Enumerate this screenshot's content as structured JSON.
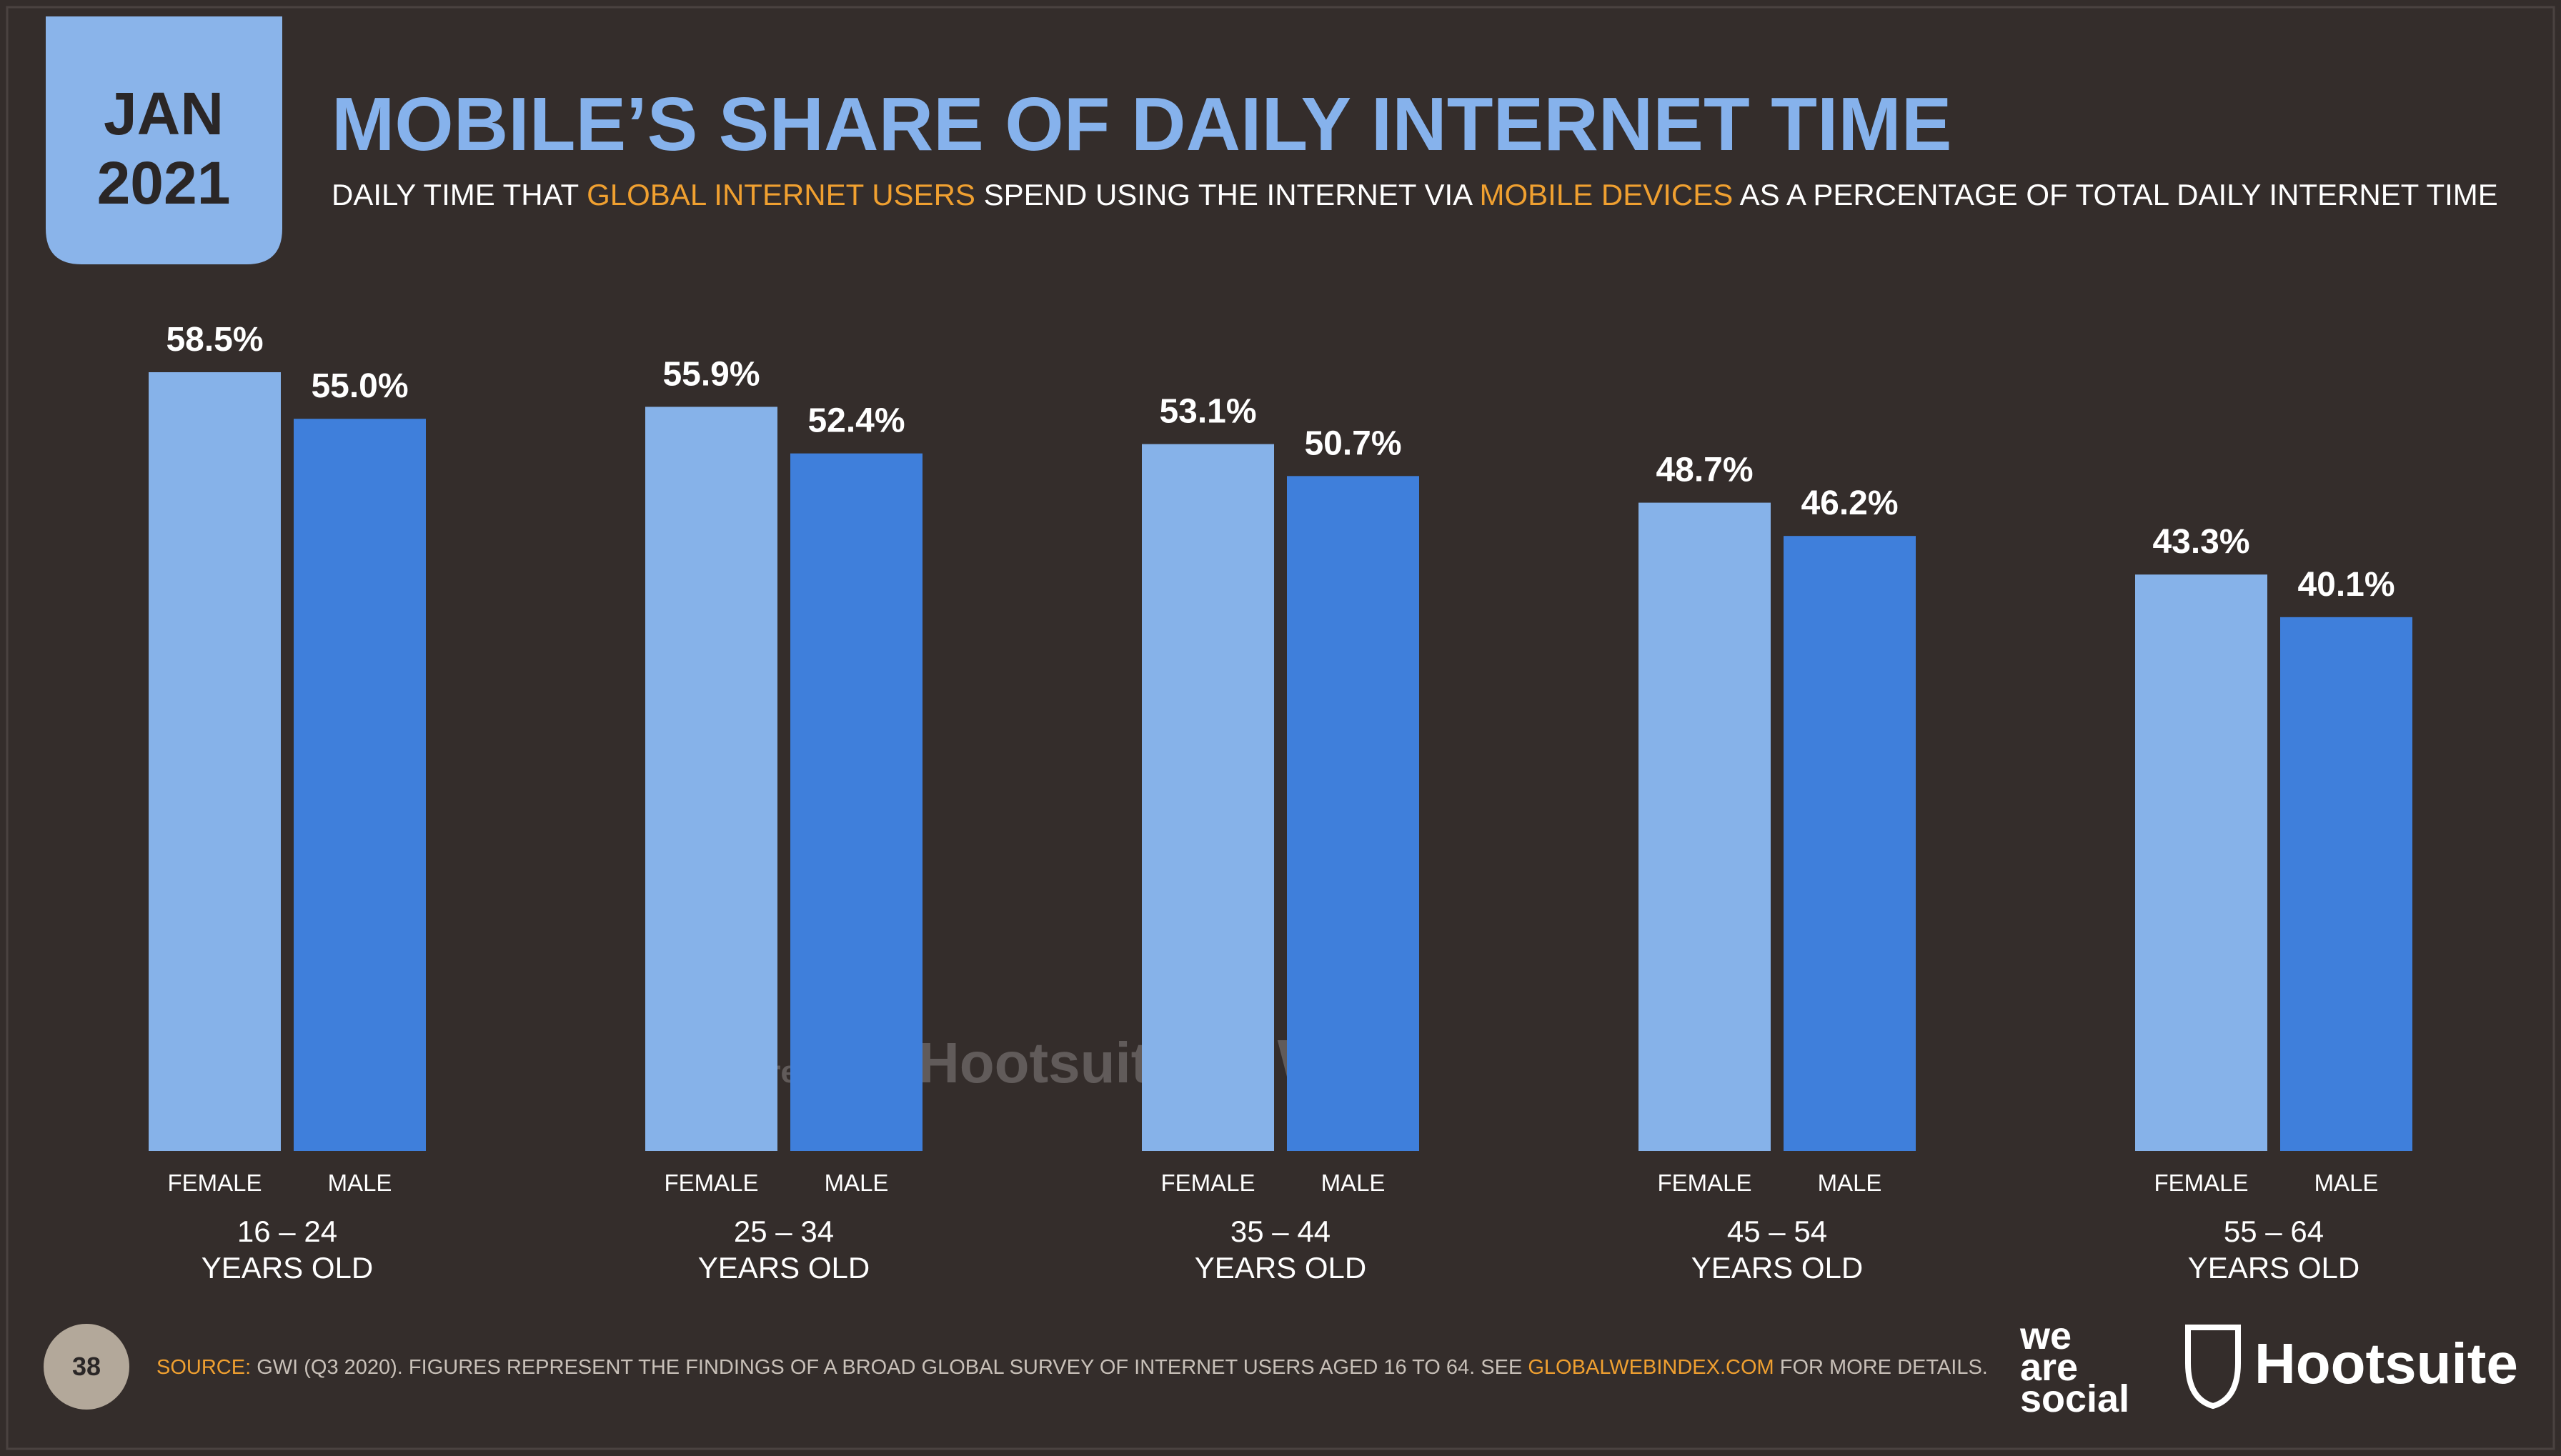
{
  "chart_data": {
    "type": "bar",
    "badge": {
      "month": "JAN",
      "year": "2021"
    },
    "title": "MOBILE’S SHARE OF DAILY INTERNET TIME",
    "subtitle": [
      {
        "text": "DAILY TIME THAT ",
        "highlight": false
      },
      {
        "text": "GLOBAL INTERNET USERS",
        "highlight": true
      },
      {
        "text": " SPEND USING THE INTERNET VIA ",
        "highlight": false
      },
      {
        "text": "MOBILE DEVICES",
        "highlight": true
      },
      {
        "text": " AS A PERCENTAGE OF TOTAL DAILY INTERNET TIME",
        "highlight": false
      }
    ],
    "highlight_color": "#f0a030",
    "categories": [
      "16 – 24",
      "25 – 34",
      "35 – 44",
      "45 – 54",
      "55 – 64"
    ],
    "category_suffix": "YEARS OLD",
    "series": [
      {
        "name": "FEMALE",
        "color": "#86b2e9",
        "values": [
          58.5,
          55.9,
          53.1,
          48.7,
          43.3
        ],
        "value_labels": [
          "58.5%",
          "55.9%",
          "53.1%",
          "48.7%",
          "43.3%"
        ]
      },
      {
        "name": "MALE",
        "color": "#3f7fdb",
        "values": [
          55.0,
          52.4,
          50.7,
          46.2,
          40.1
        ],
        "value_labels": [
          "55.0%",
          "52.4%",
          "50.7%",
          "46.2%",
          "40.1%"
        ]
      }
    ],
    "page_number": "38",
    "source": [
      {
        "text": "SOURCE:",
        "highlight": true
      },
      {
        "text": " GWI (Q3 2020). FIGURES REPRESENT THE FINDINGS OF A BROAD GLOBAL SURVEY OF INTERNET USERS AGED 16 TO 64. SEE ",
        "highlight": false
      },
      {
        "text": "GLOBALWEBINDEX.COM",
        "highlight": true
      },
      {
        "text": " FOR MORE DETAILS.",
        "highlight": false
      }
    ],
    "logos": {
      "we_are_social": [
        "we",
        "are",
        "social"
      ],
      "hootsuite": "Hootsuite"
    },
    "watermark": [
      "we are social",
      "Hootsuite",
      "GWI."
    ]
  }
}
